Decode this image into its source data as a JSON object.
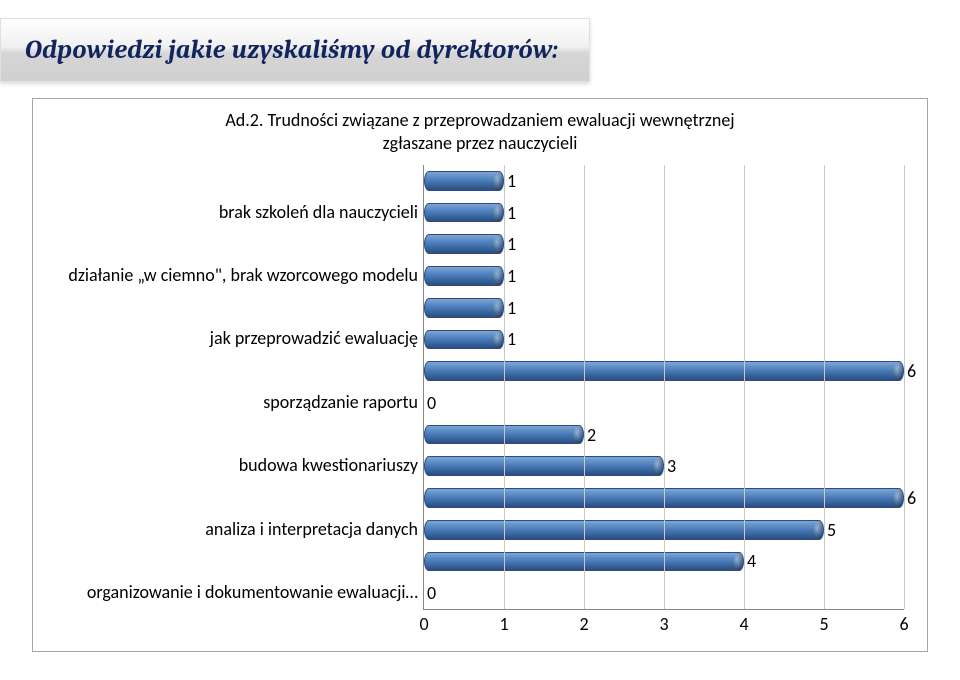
{
  "title": "Odpowiedzi jakie uzyskaliśmy od dyrektorów:",
  "chart": {
    "type": "bar-horizontal-3d",
    "title_lines": [
      "Ad.2.    Trudności związane z przeprowadzaniem ewaluacji wewnętrznej",
      "zgłaszane przez nauczycieli"
    ],
    "title_fontsize": 18,
    "x_axis": {
      "min": 0,
      "max": 6,
      "tick_step": 1
    },
    "grid_color": "#c8c8c8",
    "axis_color": "#888888",
    "bar_fill": "#4a7ebb",
    "bar_border": "#2b4d80",
    "bar_highlight": "#7da6d6",
    "value_label_fontsize": 18,
    "category_label_fontsize": 18,
    "rows": [
      {
        "category": "",
        "value": 1
      },
      {
        "category": "brak szkoleń dla nauczycieli",
        "value": 1
      },
      {
        "category": "",
        "value": 1
      },
      {
        "category": "działanie „w ciemno\", brak wzorcowego modelu",
        "value": 1
      },
      {
        "category": "",
        "value": 1
      },
      {
        "category": "jak przeprowadzić ewaluację",
        "value": 1
      },
      {
        "category": "",
        "value": 6
      },
      {
        "category": "sporządzanie raportu",
        "value": 0
      },
      {
        "category": "",
        "value": 2
      },
      {
        "category": "budowa kwestionariuszy",
        "value": 3
      },
      {
        "category": "",
        "value": 6
      },
      {
        "category": "analiza i interpretacja danych",
        "value": 5
      },
      {
        "category": "",
        "value": 4
      },
      {
        "category": "organizowanie i dokumentowanie ewaluacji…",
        "value": 0
      }
    ]
  }
}
